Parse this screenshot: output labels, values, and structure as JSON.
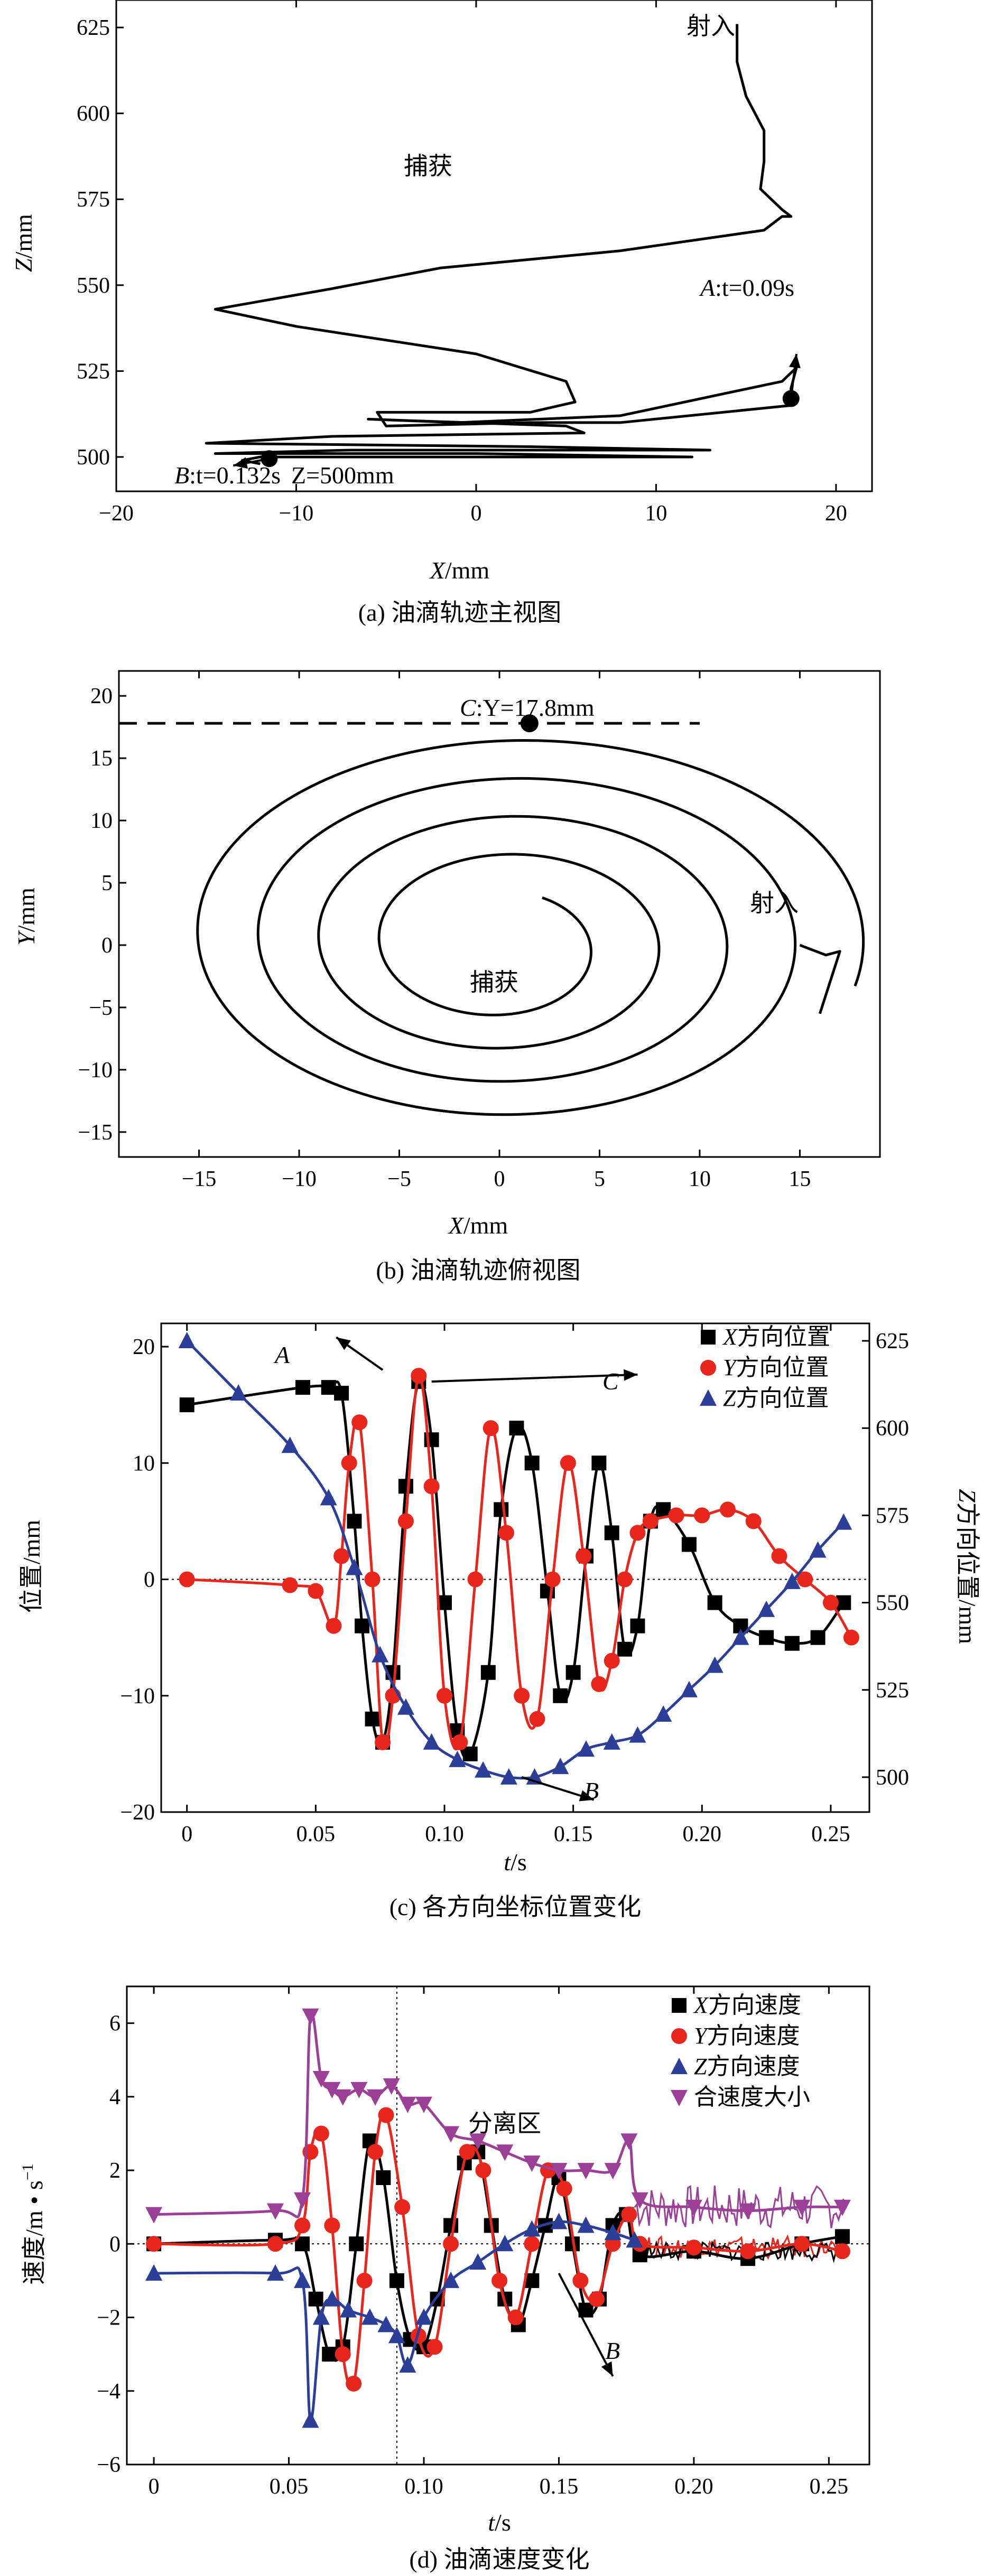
{
  "chart_data": [
    {
      "type": "line",
      "panel": "a",
      "caption": "(a) 油滴轨迹主视图",
      "xlabel_var": "X",
      "xlabel_unit": "/mm",
      "ylabel_var": "Z",
      "ylabel_unit": "/mm",
      "xlim": [
        -20,
        22
      ],
      "ylim": [
        490,
        633
      ],
      "xticks": [
        -20,
        -10,
        0,
        10,
        20
      ],
      "yticks": [
        500,
        525,
        550,
        575,
        600,
        625
      ],
      "series": [
        {
          "name": "trajectory",
          "x": [
            14.5,
            14.5,
            15.0,
            16.0,
            16.0,
            15.8,
            17.0,
            17.5,
            17.0,
            16.0,
            8.0,
            -2.0,
            -8.0,
            -14.5,
            -10.0,
            0.0,
            5.0,
            5.5,
            3.0,
            -5.5,
            -5.0,
            3.0,
            8.0,
            17.5,
            17.5,
            17.8,
            17.0,
            8.0,
            -1.0,
            -6.0,
            5.0,
            6.0,
            -8.0,
            -15.0,
            3.0,
            13.0,
            -7.0,
            -14.5,
            0.0,
            12.0,
            -12.0,
            -13.0,
            -12.0
          ],
          "y": [
            626,
            615,
            605,
            595,
            586,
            578,
            572,
            570,
            570,
            566,
            560,
            555,
            549,
            543,
            538,
            530,
            522,
            516,
            513,
            513,
            509,
            510,
            510,
            515,
            520,
            526,
            522,
            512,
            510,
            511,
            509,
            507,
            506,
            504,
            503,
            502,
            502,
            501,
            501,
            500,
            500,
            499,
            498
          ]
        }
      ],
      "annotations": {
        "inject": "射入",
        "capture": "捕获",
        "A": "A",
        "A_val": ":t=0.09s",
        "B": "B",
        "B_val": ":t=0.132s",
        "B_z": "Z=500mm"
      }
    },
    {
      "type": "line",
      "panel": "b",
      "caption": "(b) 油滴轨迹俯视图",
      "xlabel_var": "X",
      "xlabel_unit": "/mm",
      "ylabel_var": "Y",
      "ylabel_unit": "/mm",
      "xlim": [
        -19,
        19
      ],
      "ylim": [
        -17,
        22
      ],
      "xticks": [
        -15,
        -10,
        -5,
        0,
        5,
        10,
        15
      ],
      "yticks": [
        -15,
        -10,
        -5,
        0,
        5,
        10,
        15,
        20
      ],
      "dashed_y": 17.8,
      "annotations": {
        "C": "C",
        "C_val": ":Y=17.8mm",
        "inject": "射入",
        "capture": "捕获"
      }
    },
    {
      "type": "line",
      "panel": "c",
      "caption": "(c) 各方向坐标位置变化",
      "xlabel_var": "t",
      "xlabel_unit": "/s",
      "ylabel": "位置/mm",
      "ylabel2_var": "Z",
      "ylabel2_unit": "方向位置/mm",
      "xlim": [
        -0.01,
        0.265
      ],
      "ylim": [
        -20,
        22
      ],
      "xticks": [
        0,
        0.05,
        0.1,
        0.15,
        0.2,
        0.25
      ],
      "yticks": [
        -20,
        -10,
        0,
        10,
        20
      ],
      "y2lim": [
        490,
        630
      ],
      "y2ticks": [
        500,
        525,
        550,
        575,
        600,
        625
      ],
      "series": [
        {
          "name": "X方向位置",
          "var": "X",
          "label_rest": "方向位置",
          "color": "#000000",
          "marker": "square",
          "t": [
            0,
            0.045,
            0.055,
            0.06,
            0.065,
            0.068,
            0.072,
            0.076,
            0.08,
            0.085,
            0.09,
            0.095,
            0.1,
            0.105,
            0.11,
            0.117,
            0.122,
            0.128,
            0.134,
            0.14,
            0.145,
            0.15,
            0.155,
            0.16,
            0.165,
            0.17,
            0.175,
            0.18,
            0.185,
            0.195,
            0.205,
            0.215,
            0.225,
            0.235,
            0.245,
            0.255
          ],
          "y": [
            15.0,
            16.5,
            16.5,
            16.0,
            5.0,
            -4.0,
            -12.0,
            -14.0,
            -8.0,
            8.0,
            17.0,
            12.0,
            -2.0,
            -13.0,
            -15.0,
            -8.0,
            6.0,
            13.0,
            10.0,
            -1.0,
            -10.0,
            -8.0,
            2.0,
            10.0,
            4.0,
            -6.0,
            -4.0,
            5.0,
            6.0,
            3.0,
            -2.0,
            -4.0,
            -5.0,
            -5.5,
            -5.0,
            -2.0
          ]
        },
        {
          "name": "Y方向位置",
          "var": "Y",
          "label_rest": "方向位置",
          "color": "#e8261c",
          "marker": "circle",
          "t": [
            0,
            0.04,
            0.05,
            0.057,
            0.06,
            0.063,
            0.067,
            0.072,
            0.076,
            0.08,
            0.085,
            0.09,
            0.095,
            0.1,
            0.106,
            0.112,
            0.118,
            0.124,
            0.13,
            0.136,
            0.142,
            0.148,
            0.154,
            0.16,
            0.165,
            0.17,
            0.175,
            0.18,
            0.19,
            0.2,
            0.21,
            0.22,
            0.23,
            0.24,
            0.25,
            0.258
          ],
          "y": [
            0,
            -0.5,
            -1.0,
            -4.0,
            2.0,
            10.0,
            13.5,
            0.0,
            -14.0,
            -10.0,
            5.0,
            17.5,
            8.0,
            -10.0,
            -14.0,
            0.0,
            13.0,
            4.0,
            -10.0,
            -12.0,
            0.0,
            10.0,
            2.0,
            -9.0,
            -7.0,
            0.0,
            4.0,
            5.0,
            5.5,
            5.5,
            6.0,
            5.0,
            2.0,
            0.0,
            -2.0,
            -5.0
          ]
        },
        {
          "name": "Z方向位置",
          "var": "Z",
          "label_rest": "方向位置",
          "color": "#2b3f98",
          "marker": "triangle",
          "axis": "right",
          "t": [
            0,
            0.02,
            0.04,
            0.055,
            0.065,
            0.075,
            0.085,
            0.095,
            0.105,
            0.115,
            0.125,
            0.135,
            0.145,
            0.155,
            0.165,
            0.175,
            0.185,
            0.195,
            0.205,
            0.215,
            0.225,
            0.235,
            0.245,
            0.255
          ],
          "y": [
            625,
            610,
            595,
            580,
            560,
            535,
            520,
            510,
            505,
            502,
            500,
            500,
            503,
            508,
            510,
            512,
            518,
            525,
            532,
            540,
            548,
            556,
            565,
            573
          ]
        }
      ],
      "annotations": {
        "A": "A",
        "C": "C",
        "B": "B"
      }
    },
    {
      "type": "line",
      "panel": "d",
      "caption": "(d) 油滴速度变化",
      "xlabel_var": "t",
      "xlabel_unit": "/s",
      "ylabel": "速度/m • s",
      "ylabel_sup": "−1",
      "xlim": [
        -0.01,
        0.265
      ],
      "ylim": [
        -6,
        7
      ],
      "xticks": [
        0,
        0.05,
        0.1,
        0.15,
        0.2,
        0.25
      ],
      "yticks": [
        -6,
        -4,
        -2,
        0,
        2,
        4,
        6
      ],
      "vline_t": 0.09,
      "series": [
        {
          "name": "X方向速度",
          "var": "X",
          "label_rest": "方向速度",
          "color": "#000000",
          "marker": "square",
          "t": [
            0,
            0.045,
            0.055,
            0.06,
            0.065,
            0.07,
            0.075,
            0.08,
            0.085,
            0.09,
            0.095,
            0.1,
            0.105,
            0.11,
            0.115,
            0.12,
            0.125,
            0.13,
            0.135,
            0.14,
            0.145,
            0.15,
            0.155,
            0.16,
            0.165,
            0.17,
            0.175,
            0.18,
            0.2,
            0.22,
            0.24,
            0.255
          ],
          "y": [
            0,
            0.1,
            0.0,
            -1.5,
            -3.0,
            -2.8,
            0.0,
            2.8,
            1.8,
            -1.0,
            -2.6,
            -2.8,
            -1.5,
            0.5,
            2.2,
            2.5,
            0.5,
            -1.5,
            -2.2,
            -1.0,
            0.5,
            1.8,
            0.0,
            -1.8,
            -1.5,
            0.5,
            0.8,
            -0.3,
            -0.2,
            -0.4,
            0.0,
            0.2
          ]
        },
        {
          "name": "Y方向速度",
          "var": "Y",
          "label_rest": "方向速度",
          "color": "#e8261c",
          "marker": "circle",
          "t": [
            0,
            0.045,
            0.055,
            0.058,
            0.062,
            0.066,
            0.07,
            0.074,
            0.078,
            0.082,
            0.086,
            0.092,
            0.098,
            0.104,
            0.11,
            0.116,
            0.122,
            0.128,
            0.134,
            0.14,
            0.146,
            0.152,
            0.158,
            0.164,
            0.17,
            0.176,
            0.18,
            0.2,
            0.22,
            0.24,
            0.255
          ],
          "y": [
            0,
            0.0,
            0.5,
            2.5,
            3.0,
            0.5,
            -3.0,
            -3.8,
            -1.0,
            2.5,
            3.5,
            1.0,
            -2.5,
            -2.8,
            0.0,
            2.5,
            2.0,
            -1.0,
            -2.0,
            0.0,
            2.0,
            1.5,
            -1.0,
            -1.5,
            0.0,
            0.8,
            0.0,
            -0.1,
            -0.2,
            0.0,
            -0.2
          ]
        },
        {
          "name": "Z方向速度",
          "var": "Z",
          "label_rest": "方向速度",
          "color": "#2b3f98",
          "marker": "triangle",
          "t": [
            0,
            0.045,
            0.055,
            0.058,
            0.062,
            0.066,
            0.072,
            0.08,
            0.086,
            0.09,
            0.094,
            0.1,
            0.11,
            0.12,
            0.13,
            0.14,
            0.15,
            0.16,
            0.17,
            0.178
          ],
          "y": [
            -0.8,
            -0.8,
            -1.0,
            -4.8,
            -2.0,
            -1.5,
            -1.8,
            -2.0,
            -2.2,
            -2.5,
            -3.3,
            -2.0,
            -1.0,
            -0.5,
            0.0,
            0.4,
            0.6,
            0.5,
            0.3,
            0.1
          ]
        },
        {
          "name": "合速度大小",
          "var": "",
          "label_rest": "合速度大小",
          "color": "#9c3f97",
          "marker": "triangle-down",
          "t": [
            0,
            0.045,
            0.055,
            0.058,
            0.062,
            0.066,
            0.07,
            0.076,
            0.082,
            0.088,
            0.094,
            0.1,
            0.11,
            0.12,
            0.13,
            0.14,
            0.15,
            0.16,
            0.17,
            0.176,
            0.18,
            0.2,
            0.22,
            0.24,
            0.255
          ],
          "y": [
            0.8,
            0.9,
            1.2,
            6.2,
            4.5,
            4.2,
            4.0,
            4.2,
            4.0,
            4.3,
            3.8,
            3.8,
            3.0,
            2.8,
            2.5,
            2.2,
            2.0,
            2.0,
            2.0,
            2.8,
            1.2,
            1.0,
            0.9,
            1.0,
            1.0
          ]
        }
      ],
      "annotations": {
        "zone": "分离区",
        "B": "B"
      }
    }
  ]
}
